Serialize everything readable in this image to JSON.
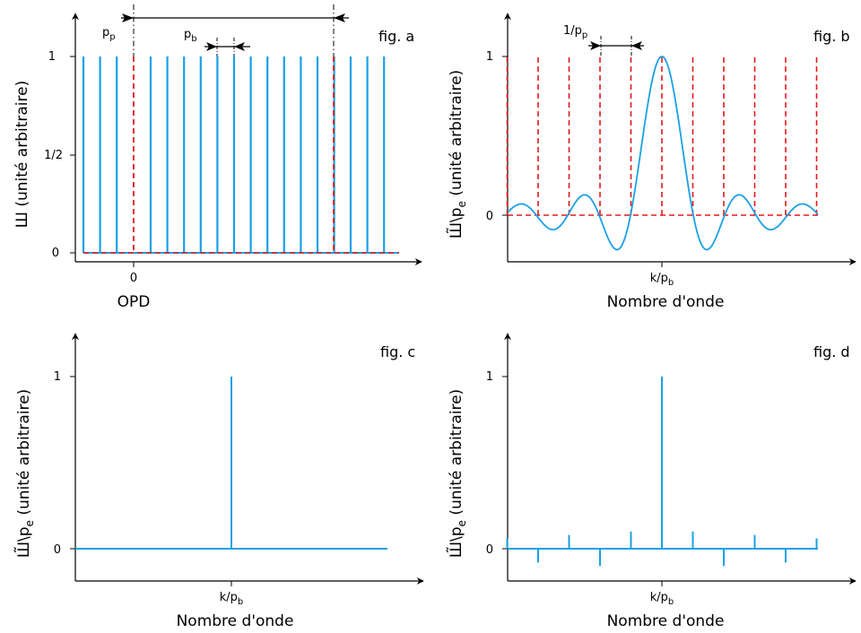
{
  "colors": {
    "signal": "#1aa0e6",
    "dashed": "#e41a1c",
    "axis": "#000000"
  },
  "panels": {
    "a": {
      "label": "fig. a",
      "ylabel": "Ш (unité arbitraire)",
      "xlabel": "OPD",
      "yticks": [
        "1",
        "1/2",
        "0"
      ],
      "xtick": "0",
      "pp_label_main": "p",
      "pp_label_sub": "p",
      "pb_label_main": "p",
      "pb_label_sub": "b",
      "comb_count_left": 3,
      "comb_count_mid": 12,
      "comb_count_right": 3,
      "comb_height": 1.0
    },
    "b": {
      "label": "fig. b",
      "ylabel_main": "Ш̃\\p",
      "ylabel_sub": "e",
      "ylabel_tail": " (unité arbitraire)",
      "xlabel": "Nombre d'onde",
      "yticks": [
        "1",
        "0"
      ],
      "xtick_main": "k/p",
      "xtick_sub": "b",
      "spacing_label_main": "1/p",
      "spacing_label_sub": "p",
      "dashed_lines": 11,
      "sinc_peak": 1.0
    },
    "c": {
      "label": "fig. c",
      "ylabel_main": "Ш̃\\p",
      "ylabel_sub": "e",
      "ylabel_tail": " (unité arbitraire)",
      "xlabel": "Nombre d'onde",
      "yticks": [
        "1",
        "0"
      ],
      "xtick_main": "k/p",
      "xtick_sub": "b",
      "peak": 1.0
    },
    "d": {
      "label": "fig. d",
      "ylabel_main": "Ш̃\\p",
      "ylabel_sub": "e",
      "ylabel_tail": " (unité arbitraire)",
      "xlabel": "Nombre d'onde",
      "yticks": [
        "1",
        "0"
      ],
      "xtick_main": "k/p",
      "xtick_sub": "b",
      "peak": 1.0,
      "side_peaks": [
        0.06,
        -0.08,
        0.08,
        -0.1,
        0.1,
        0,
        0.1,
        -0.1,
        0.08,
        -0.08,
        0.06
      ]
    }
  }
}
